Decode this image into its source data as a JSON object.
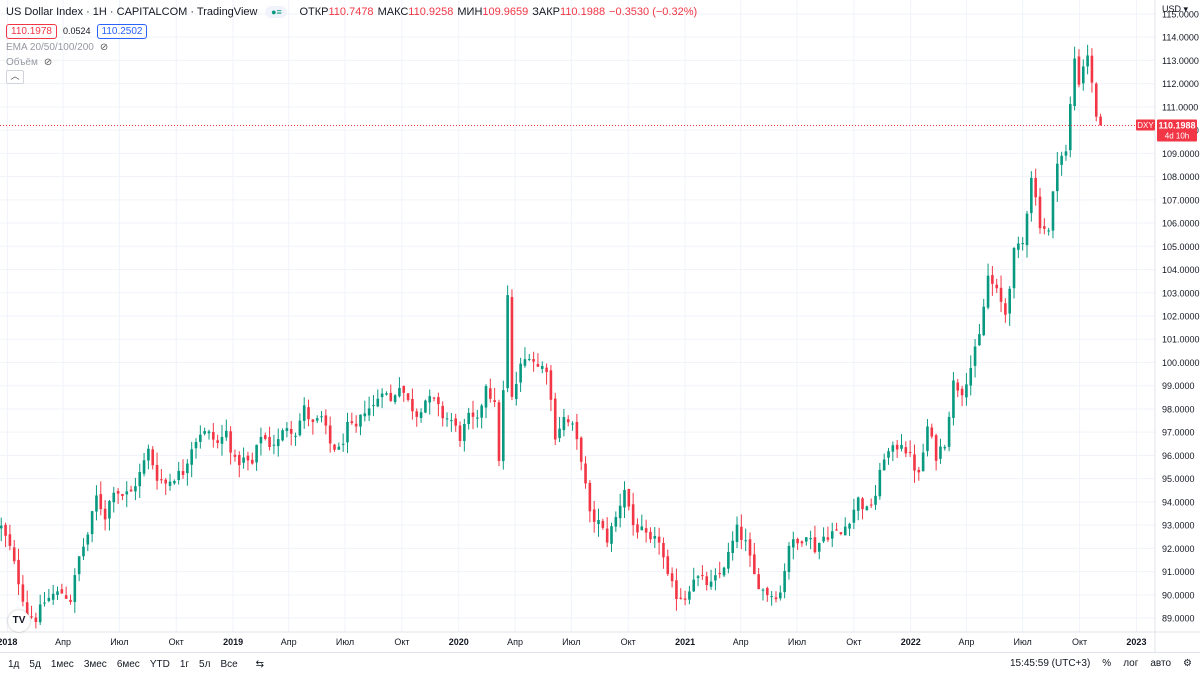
{
  "header": {
    "title": "US Dollar Index · 1H · CAPITALCOM · TradingView",
    "ohlc": [
      {
        "label": "ОТКР",
        "value": "110.7478"
      },
      {
        "label": "МАКС",
        "value": "110.9258"
      },
      {
        "label": "МИН",
        "value": "109.9659"
      },
      {
        "label": "ЗАКР",
        "value": "110.1988"
      }
    ],
    "change": "−0.3530 (−0.32%)",
    "bid": "110.1978",
    "spread": "0.0524",
    "ask": "110.2502",
    "indicators": [
      "EMA 20/50/100/200",
      "Объём"
    ]
  },
  "currency": "USD",
  "price_tag": {
    "symbol": "DXY",
    "price": "110.1988",
    "countdown": "4d 10h"
  },
  "bottom_bar": {
    "timeframes": [
      "1д",
      "5д",
      "1мес",
      "3мес",
      "6мес",
      "YTD",
      "1г",
      "5л",
      "Все"
    ],
    "time": "15:45:59 (UTC+3)",
    "percent": "%",
    "log": "лог",
    "auto": "авто"
  },
  "colors": {
    "up": "#089981",
    "down": "#f23645",
    "grid": "#f0f3fa",
    "price_line": "#f23645"
  },
  "chart_data": {
    "type": "candlestick",
    "y_axis": {
      "range": [
        88.4,
        115.6
      ],
      "ticks": [
        89,
        90,
        91,
        92,
        93,
        94,
        95,
        96,
        97,
        98,
        99,
        100,
        101,
        102,
        103,
        104,
        105,
        106,
        107,
        108,
        109,
        110,
        111,
        112,
        113,
        114,
        115
      ],
      "tick_labels": [
        "89.0000",
        "90.0000",
        "91.0000",
        "92.0000",
        "93.0000",
        "94.0000",
        "95.0000",
        "96.0000",
        "97.0000",
        "98.0000",
        "99.0000",
        "100.0000",
        "101.0000",
        "102.0000",
        "103.0000",
        "104.0000",
        "105.0000",
        "106.0000",
        "107.0000",
        "108.0000",
        "109.0000",
        "110.0000",
        "111.0000",
        "112.0000",
        "113.0000",
        "114.0000",
        "115.0000"
      ],
      "position": "right"
    },
    "x_axis": {
      "range": [
        "2017-12-20",
        "2023-01-31"
      ],
      "ticks": [
        {
          "date": "2018-01-01",
          "label": "2018",
          "bold": true
        },
        {
          "date": "2018-04-01",
          "label": "Апр"
        },
        {
          "date": "2018-07-01",
          "label": "Июл"
        },
        {
          "date": "2018-10-01",
          "label": "Окт"
        },
        {
          "date": "2019-01-01",
          "label": "2019",
          "bold": true
        },
        {
          "date": "2019-04-01",
          "label": "Апр"
        },
        {
          "date": "2019-07-01",
          "label": "Июл"
        },
        {
          "date": "2019-10-01",
          "label": "Окт"
        },
        {
          "date": "2020-01-01",
          "label": "2020",
          "bold": true
        },
        {
          "date": "2020-04-01",
          "label": "Апр"
        },
        {
          "date": "2020-07-01",
          "label": "Июл"
        },
        {
          "date": "2020-10-01",
          "label": "Окт"
        },
        {
          "date": "2021-01-01",
          "label": "2021",
          "bold": true
        },
        {
          "date": "2021-04-01",
          "label": "Апр"
        },
        {
          "date": "2021-07-01",
          "label": "Июл"
        },
        {
          "date": "2021-10-01",
          "label": "Окт"
        },
        {
          "date": "2022-01-01",
          "label": "2022",
          "bold": true
        },
        {
          "date": "2022-04-01",
          "label": "Апр"
        },
        {
          "date": "2022-07-01",
          "label": "Июл"
        },
        {
          "date": "2022-10-01",
          "label": "Окт"
        },
        {
          "date": "2023-01-01",
          "label": "2023",
          "bold": true
        }
      ]
    },
    "last_price": 110.1988,
    "candle_interval_days": 7,
    "close_path": [
      [
        "2017-12-22",
        92.9
      ],
      [
        "2018-01-05",
        92.0
      ],
      [
        "2018-01-19",
        90.6
      ],
      [
        "2018-02-02",
        89.2
      ],
      [
        "2018-02-16",
        89.0
      ],
      [
        "2018-03-02",
        89.7
      ],
      [
        "2018-03-16",
        90.0
      ],
      [
        "2018-03-30",
        90.1
      ],
      [
        "2018-04-13",
        89.8
      ],
      [
        "2018-04-27",
        91.6
      ],
      [
        "2018-05-11",
        92.6
      ],
      [
        "2018-05-25",
        94.2
      ],
      [
        "2018-06-08",
        93.4
      ],
      [
        "2018-06-22",
        94.6
      ],
      [
        "2018-07-06",
        94.3
      ],
      [
        "2018-07-20",
        94.4
      ],
      [
        "2018-08-03",
        95.2
      ],
      [
        "2018-08-17",
        96.2
      ],
      [
        "2018-08-31",
        95.1
      ],
      [
        "2018-09-14",
        94.8
      ],
      [
        "2018-09-28",
        95.1
      ],
      [
        "2018-10-12",
        95.3
      ],
      [
        "2018-10-26",
        96.4
      ],
      [
        "2018-11-09",
        97.0
      ],
      [
        "2018-11-23",
        96.9
      ],
      [
        "2018-12-07",
        96.5
      ],
      [
        "2018-12-21",
        97.0
      ],
      [
        "2019-01-04",
        95.7
      ],
      [
        "2019-01-18",
        95.8
      ],
      [
        "2019-02-01",
        95.6
      ],
      [
        "2019-02-15",
        96.9
      ],
      [
        "2019-03-01",
        96.5
      ],
      [
        "2019-03-15",
        96.6
      ],
      [
        "2019-03-29",
        97.3
      ],
      [
        "2019-04-12",
        97.0
      ],
      [
        "2019-04-26",
        98.0
      ],
      [
        "2019-05-10",
        97.3
      ],
      [
        "2019-05-24",
        97.6
      ],
      [
        "2019-06-07",
        96.5
      ],
      [
        "2019-06-21",
        96.2
      ],
      [
        "2019-07-05",
        97.2
      ],
      [
        "2019-07-19",
        97.1
      ],
      [
        "2019-08-02",
        98.0
      ],
      [
        "2019-08-16",
        98.1
      ],
      [
        "2019-08-30",
        98.9
      ],
      [
        "2019-09-13",
        98.3
      ],
      [
        "2019-09-27",
        99.1
      ],
      [
        "2019-10-11",
        98.3
      ],
      [
        "2019-10-25",
        97.8
      ],
      [
        "2019-11-08",
        98.4
      ],
      [
        "2019-11-22",
        98.3
      ],
      [
        "2019-12-06",
        97.7
      ],
      [
        "2019-12-20",
        97.5
      ],
      [
        "2020-01-03",
        96.8
      ],
      [
        "2020-01-17",
        97.6
      ],
      [
        "2020-01-31",
        97.4
      ],
      [
        "2020-02-14",
        99.1
      ],
      [
        "2020-02-28",
        98.1
      ],
      [
        "2020-03-06",
        95.9
      ],
      [
        "2020-03-13",
        98.7
      ],
      [
        "2020-03-20",
        102.8
      ],
      [
        "2020-03-27",
        98.4
      ],
      [
        "2020-04-10",
        99.8
      ],
      [
        "2020-04-24",
        100.4
      ],
      [
        "2020-05-08",
        99.8
      ],
      [
        "2020-05-22",
        99.8
      ],
      [
        "2020-06-05",
        96.9
      ],
      [
        "2020-06-19",
        97.6
      ],
      [
        "2020-07-03",
        97.2
      ],
      [
        "2020-07-17",
        95.9
      ],
      [
        "2020-07-31",
        93.4
      ],
      [
        "2020-08-14",
        93.1
      ],
      [
        "2020-08-28",
        92.4
      ],
      [
        "2020-09-11",
        93.3
      ],
      [
        "2020-09-25",
        94.6
      ],
      [
        "2020-10-09",
        93.0
      ],
      [
        "2020-10-23",
        92.7
      ],
      [
        "2020-11-06",
        92.2
      ],
      [
        "2020-11-20",
        92.4
      ],
      [
        "2020-12-04",
        90.7
      ],
      [
        "2020-12-18",
        90.0
      ],
      [
        "2021-01-01",
        89.9
      ],
      [
        "2021-01-15",
        90.8
      ],
      [
        "2021-01-29",
        90.6
      ],
      [
        "2021-02-12",
        90.4
      ],
      [
        "2021-02-26",
        90.9
      ],
      [
        "2021-03-12",
        91.7
      ],
      [
        "2021-03-26",
        92.8
      ],
      [
        "2021-04-09",
        92.2
      ],
      [
        "2021-04-23",
        90.8
      ],
      [
        "2021-05-07",
        90.2
      ],
      [
        "2021-05-21",
        90.0
      ],
      [
        "2021-06-04",
        90.1
      ],
      [
        "2021-06-18",
        92.2
      ],
      [
        "2021-07-02",
        92.2
      ],
      [
        "2021-07-16",
        92.7
      ],
      [
        "2021-07-30",
        92.0
      ],
      [
        "2021-08-13",
        92.5
      ],
      [
        "2021-08-27",
        92.7
      ],
      [
        "2021-09-10",
        92.6
      ],
      [
        "2021-09-24",
        93.3
      ],
      [
        "2021-10-08",
        94.1
      ],
      [
        "2021-10-22",
        93.6
      ],
      [
        "2021-11-05",
        94.3
      ],
      [
        "2021-11-19",
        96.0
      ],
      [
        "2021-12-03",
        96.2
      ],
      [
        "2021-12-17",
        96.6
      ],
      [
        "2021-12-31",
        95.9
      ],
      [
        "2022-01-14",
        95.1
      ],
      [
        "2022-01-28",
        97.2
      ],
      [
        "2022-02-11",
        96.0
      ],
      [
        "2022-02-25",
        96.6
      ],
      [
        "2022-03-11",
        99.1
      ],
      [
        "2022-03-25",
        98.8
      ],
      [
        "2022-04-08",
        99.8
      ],
      [
        "2022-04-22",
        101.1
      ],
      [
        "2022-05-06",
        103.7
      ],
      [
        "2022-05-20",
        103.0
      ],
      [
        "2022-06-03",
        102.1
      ],
      [
        "2022-06-17",
        104.7
      ],
      [
        "2022-07-01",
        105.1
      ],
      [
        "2022-07-15",
        108.1
      ],
      [
        "2022-07-29",
        106.0
      ],
      [
        "2022-08-12",
        105.6
      ],
      [
        "2022-08-26",
        108.8
      ],
      [
        "2022-09-09",
        109.0
      ],
      [
        "2022-09-23",
        113.1
      ],
      [
        "2022-09-30",
        112.1
      ],
      [
        "2022-10-07",
        112.8
      ],
      [
        "2022-10-14",
        113.3
      ],
      [
        "2022-10-21",
        111.9
      ],
      [
        "2022-10-28",
        110.7
      ],
      [
        "2022-11-04",
        110.1988
      ]
    ]
  }
}
